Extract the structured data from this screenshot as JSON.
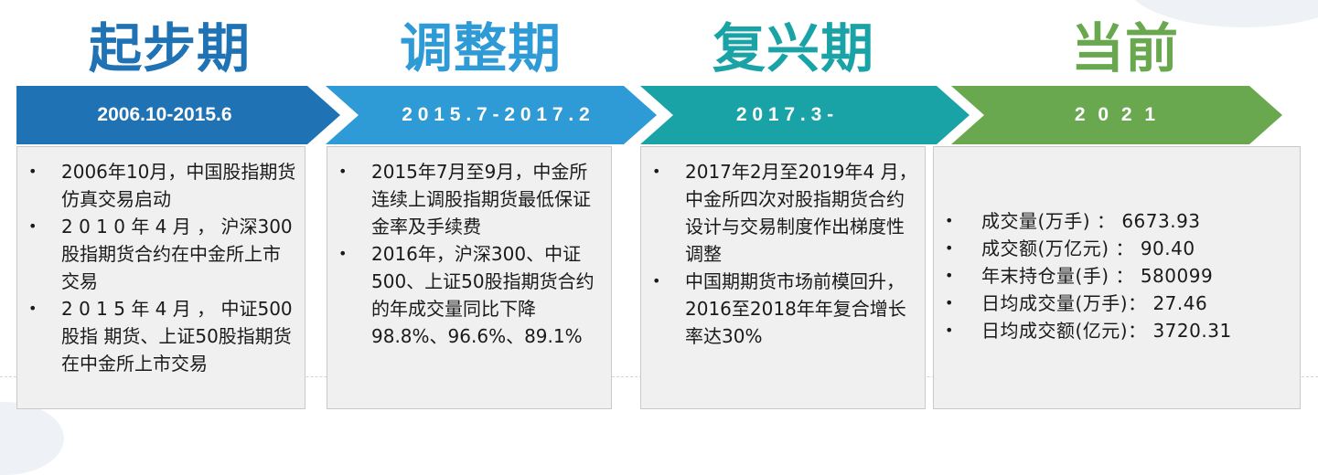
{
  "colors": {
    "phase1": "#1f72b4",
    "phase2": "#2e9ad6",
    "phase3": "#1aa3a6",
    "phase4": "#6aa84f"
  },
  "phases": [
    {
      "title": "起步期",
      "period": "2006.10-2015.6",
      "items": [
        "2006年10月，中国股指期货仿真交易启动",
        "2 0 1 0 年 4 月 ， 沪深300股指期货合约在中金所上市交易",
        "2 0 1 5 年 4 月 ， 中证500股指 期货、上证50股指期货在中金所上市交易"
      ]
    },
    {
      "title": "调整期",
      "period": "2 0 1 5 . 7 - 2 0 1 7 . 2",
      "items": [
        "2015年7月至9月，中金所连续上调股指期货最低保证金率及手续费",
        "2016年，沪深300、中证 500、上证50股指期货合约的年成交量同比下降 98.8%、96.6%、89.1%"
      ]
    },
    {
      "title": "复兴期",
      "period": "2 0 1 7 . 3 -",
      "items": [
        "2017年2月至2019年4 月，中金所四次对股指期货合约设计与交易制度作出梯度性调整",
        "中国期期货市场前模回升，2016至2018年年复合增长率达30%"
      ]
    },
    {
      "title": "当前",
      "period": "2 0 2 1",
      "items": [
        "成交量(万手) ： 6673.93",
        "成交额(万亿元) ： 90.40",
        "年末持仓量(手) ： 580099",
        "日均成交量(万手)：  27.46",
        "日均成交额(亿元)：  3720.31"
      ]
    }
  ],
  "bullet": "•"
}
